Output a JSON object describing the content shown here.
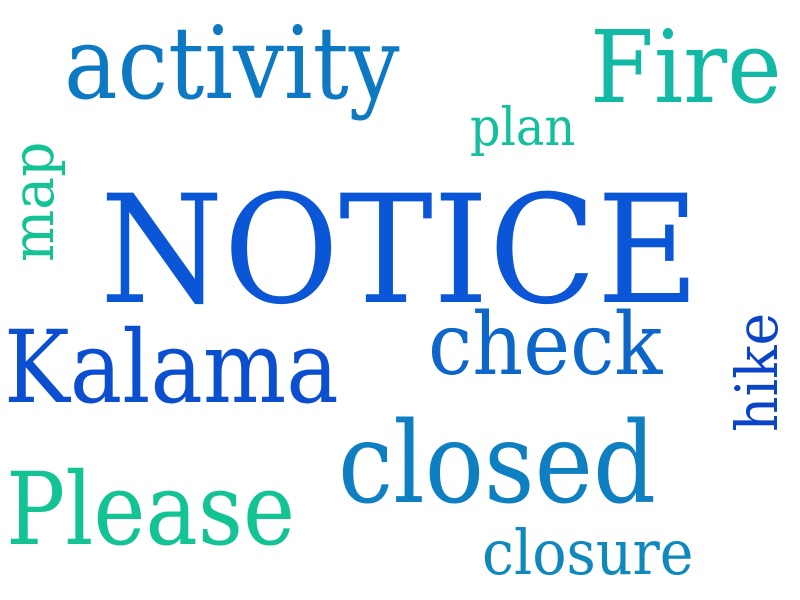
{
  "colors": {
    "background": "#ffffff",
    "royal_blue": "#0b56d6",
    "ocean_blue": "#0e7fc0",
    "teal": "#12b9a4",
    "sea_green": "#14c394",
    "deep_blue": "#0b4fd0"
  },
  "words": [
    {
      "text": "NOTICE",
      "color": "#0b56d6",
      "orientation": "horizontal"
    },
    {
      "text": "activity",
      "color": "#0d79c2",
      "orientation": "horizontal"
    },
    {
      "text": "Fire",
      "color": "#12b9a4",
      "orientation": "horizontal"
    },
    {
      "text": "plan",
      "color": "#13bf9c",
      "orientation": "horizontal"
    },
    {
      "text": "map",
      "color": "#14c394",
      "orientation": "vertical"
    },
    {
      "text": "Kalama",
      "color": "#0b4fd0",
      "orientation": "horizontal"
    },
    {
      "text": "check",
      "color": "#0d66c9",
      "orientation": "horizontal"
    },
    {
      "text": "hike",
      "color": "#0a44c8",
      "orientation": "vertical"
    },
    {
      "text": "closed",
      "color": "#0e7fc0",
      "orientation": "horizontal"
    },
    {
      "text": "Please",
      "color": "#14c394",
      "orientation": "horizontal"
    },
    {
      "text": "closure",
      "color": "#0e88bd",
      "orientation": "horizontal"
    }
  ]
}
